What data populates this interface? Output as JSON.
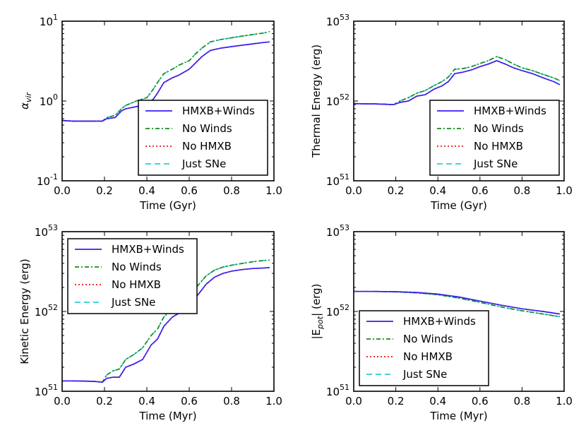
{
  "chart_data": [
    {
      "type": "line",
      "xlabel": "Time (Gyr)",
      "ylabel": "α_vir",
      "ylabel_base": "α",
      "ylabel_sub": "vir",
      "xlim": [
        0.0,
        1.0
      ],
      "ylim": [
        0.1,
        10
      ],
      "yscale": "log",
      "xticks": [
        "0.0",
        "0.2",
        "0.4",
        "0.6",
        "0.8",
        "1.0"
      ],
      "yticks": [
        {
          "base": "10",
          "exp": "-1",
          "value": 0.1
        },
        {
          "base": "10",
          "exp": "0",
          "value": 1
        },
        {
          "base": "10",
          "exp": "1",
          "value": 10
        }
      ],
      "legend_position": "lower-right",
      "series": [
        {
          "name": "HMXB+Winds",
          "color": "#3a1ff0",
          "dash": "solid",
          "x": [
            0.0,
            0.05,
            0.1,
            0.15,
            0.19,
            0.21,
            0.25,
            0.28,
            0.3,
            0.35,
            0.4,
            0.43,
            0.45,
            0.48,
            0.52,
            0.55,
            0.6,
            0.63,
            0.66,
            0.7,
            0.75,
            0.8,
            0.85,
            0.9,
            0.95,
            0.98
          ],
          "y": [
            0.57,
            0.56,
            0.56,
            0.56,
            0.56,
            0.6,
            0.62,
            0.75,
            0.8,
            0.85,
            0.92,
            1.05,
            1.25,
            1.7,
            1.95,
            2.1,
            2.5,
            3.0,
            3.6,
            4.3,
            4.6,
            4.8,
            5.0,
            5.2,
            5.4,
            5.5
          ]
        },
        {
          "name": "No Winds",
          "color": "#1a8a1a",
          "dash": "6,3,2,3",
          "x": [
            0.0,
            0.05,
            0.1,
            0.15,
            0.19,
            0.21,
            0.25,
            0.28,
            0.3,
            0.35,
            0.4,
            0.43,
            0.45,
            0.48,
            0.52,
            0.55,
            0.6,
            0.63,
            0.66,
            0.7,
            0.75,
            0.8,
            0.85,
            0.9,
            0.95,
            0.98
          ],
          "y": [
            0.57,
            0.56,
            0.56,
            0.56,
            0.56,
            0.62,
            0.66,
            0.8,
            0.88,
            1.0,
            1.1,
            1.4,
            1.7,
            2.2,
            2.5,
            2.8,
            3.2,
            3.9,
            4.6,
            5.5,
            5.9,
            6.2,
            6.5,
            6.8,
            7.1,
            7.4
          ]
        },
        {
          "name": "No HMXB",
          "color": "#e81515",
          "dash": "2,3",
          "x": [
            0.0,
            0.05,
            0.1,
            0.15,
            0.19,
            0.21,
            0.25,
            0.28,
            0.3,
            0.35,
            0.4,
            0.43,
            0.45,
            0.48,
            0.52,
            0.55,
            0.6,
            0.63,
            0.66,
            0.7,
            0.75,
            0.8,
            0.85,
            0.9,
            0.95,
            0.98
          ],
          "y": [
            0.57,
            0.56,
            0.56,
            0.56,
            0.56,
            0.6,
            0.62,
            0.75,
            0.8,
            0.85,
            0.92,
            1.05,
            1.25,
            1.7,
            1.95,
            2.1,
            2.5,
            3.0,
            3.6,
            4.3,
            4.6,
            4.8,
            5.0,
            5.2,
            5.4,
            5.5
          ]
        },
        {
          "name": "Just SNe",
          "color": "#2ad0d0",
          "dash": "8,5",
          "x": [
            0.0,
            0.05,
            0.1,
            0.15,
            0.19,
            0.21,
            0.25,
            0.28,
            0.3,
            0.35,
            0.4,
            0.43,
            0.45,
            0.48,
            0.52,
            0.55,
            0.6,
            0.63,
            0.66,
            0.7,
            0.75,
            0.8,
            0.85,
            0.9,
            0.95,
            0.98
          ],
          "y": [
            0.57,
            0.56,
            0.56,
            0.56,
            0.56,
            0.62,
            0.66,
            0.8,
            0.88,
            1.0,
            1.1,
            1.4,
            1.7,
            2.2,
            2.5,
            2.8,
            3.2,
            3.9,
            4.6,
            5.5,
            5.9,
            6.2,
            6.5,
            6.8,
            7.1,
            7.4
          ]
        }
      ]
    },
    {
      "type": "line",
      "xlabel": "Time (Gyr)",
      "ylabel": "Thermal Energy (erg)",
      "xlim": [
        0.0,
        1.0
      ],
      "ylim": [
        1e+51,
        1e+53
      ],
      "yscale": "log",
      "xticks": [
        "0.0",
        "0.2",
        "0.4",
        "0.6",
        "0.8",
        "1.0"
      ],
      "yticks": [
        {
          "base": "10",
          "exp": "51",
          "value": 1e+51
        },
        {
          "base": "10",
          "exp": "52",
          "value": 1e+52
        },
        {
          "base": "10",
          "exp": "53",
          "value": 1e+53
        }
      ],
      "legend_position": "lower-right",
      "series": [
        {
          "name": "HMXB+Winds",
          "color": "#3a1ff0",
          "dash": "solid",
          "x": [
            0.0,
            0.05,
            0.1,
            0.15,
            0.19,
            0.22,
            0.26,
            0.3,
            0.34,
            0.38,
            0.42,
            0.45,
            0.48,
            0.52,
            0.56,
            0.6,
            0.64,
            0.68,
            0.72,
            0.76,
            0.8,
            0.85,
            0.9,
            0.95,
            0.98
          ],
          "y": [
            9.3e+51,
            9.2e+51,
            9.2e+51,
            9.1e+51,
            9e+51,
            9.6e+51,
            1e+52,
            1.15e+52,
            1.2e+52,
            1.4e+52,
            1.55e+52,
            1.75e+52,
            2.2e+52,
            2.3e+52,
            2.45e+52,
            2.7e+52,
            2.9e+52,
            3.2e+52,
            2.9e+52,
            2.6e+52,
            2.4e+52,
            2.2e+52,
            1.95e+52,
            1.75e+52,
            1.6e+52
          ]
        },
        {
          "name": "No Winds",
          "color": "#1a8a1a",
          "dash": "6,3,2,3",
          "x": [
            0.0,
            0.05,
            0.1,
            0.15,
            0.19,
            0.22,
            0.26,
            0.3,
            0.34,
            0.38,
            0.42,
            0.45,
            0.48,
            0.52,
            0.56,
            0.6,
            0.64,
            0.68,
            0.72,
            0.76,
            0.8,
            0.85,
            0.9,
            0.95,
            0.98
          ],
          "y": [
            9.3e+51,
            9.2e+51,
            9.2e+51,
            9.1e+51,
            9e+51,
            1e+52,
            1.1e+52,
            1.25e+52,
            1.35e+52,
            1.55e+52,
            1.75e+52,
            2e+52,
            2.5e+52,
            2.55e+52,
            2.7e+52,
            2.95e+52,
            3.2e+52,
            3.6e+52,
            3.3e+52,
            2.9e+52,
            2.6e+52,
            2.4e+52,
            2.15e+52,
            1.95e+52,
            1.8e+52
          ]
        },
        {
          "name": "No HMXB",
          "color": "#e81515",
          "dash": "2,3",
          "x": [
            0.0,
            0.05,
            0.1,
            0.15,
            0.19,
            0.22,
            0.26,
            0.3,
            0.34,
            0.38,
            0.42,
            0.45,
            0.48,
            0.52,
            0.56,
            0.6,
            0.64,
            0.68,
            0.72,
            0.76,
            0.8,
            0.85,
            0.9,
            0.95,
            0.98
          ],
          "y": [
            9.3e+51,
            9.2e+51,
            9.2e+51,
            9.1e+51,
            9e+51,
            9.6e+51,
            1e+52,
            1.15e+52,
            1.2e+52,
            1.4e+52,
            1.55e+52,
            1.75e+52,
            2.2e+52,
            2.3e+52,
            2.45e+52,
            2.7e+52,
            2.9e+52,
            3.2e+52,
            2.9e+52,
            2.6e+52,
            2.4e+52,
            2.2e+52,
            1.95e+52,
            1.75e+52,
            1.6e+52
          ]
        },
        {
          "name": "Just SNe",
          "color": "#2ad0d0",
          "dash": "8,5",
          "x": [
            0.0,
            0.05,
            0.1,
            0.15,
            0.19,
            0.22,
            0.26,
            0.3,
            0.34,
            0.38,
            0.42,
            0.45,
            0.48,
            0.52,
            0.56,
            0.6,
            0.64,
            0.68,
            0.72,
            0.76,
            0.8,
            0.85,
            0.9,
            0.95,
            0.98
          ],
          "y": [
            9.3e+51,
            9.2e+51,
            9.2e+51,
            9.1e+51,
            9e+51,
            1e+52,
            1.1e+52,
            1.25e+52,
            1.35e+52,
            1.55e+52,
            1.75e+52,
            2e+52,
            2.5e+52,
            2.55e+52,
            2.7e+52,
            2.95e+52,
            3.2e+52,
            3.6e+52,
            3.3e+52,
            2.9e+52,
            2.6e+52,
            2.4e+52,
            2.15e+52,
            1.95e+52,
            1.8e+52
          ]
        }
      ]
    },
    {
      "type": "line",
      "xlabel": "Time (Myr)",
      "ylabel": "Kinetic Energy (erg)",
      "xlim": [
        0.0,
        1.0
      ],
      "ylim": [
        1e+51,
        1e+53
      ],
      "yscale": "log",
      "xticks": [
        "0.0",
        "0.2",
        "0.4",
        "0.6",
        "0.8",
        "1.0"
      ],
      "yticks": [
        {
          "base": "10",
          "exp": "51",
          "value": 1e+51
        },
        {
          "base": "10",
          "exp": "52",
          "value": 1e+52
        },
        {
          "base": "10",
          "exp": "53",
          "value": 1e+53
        }
      ],
      "legend_position": "upper-left",
      "series": [
        {
          "name": "HMXB+Winds",
          "color": "#3a1ff0",
          "dash": "solid",
          "x": [
            0.0,
            0.05,
            0.1,
            0.15,
            0.19,
            0.21,
            0.24,
            0.27,
            0.3,
            0.34,
            0.38,
            0.42,
            0.45,
            0.48,
            0.52,
            0.56,
            0.6,
            0.64,
            0.68,
            0.72,
            0.76,
            0.8,
            0.85,
            0.9,
            0.95,
            0.98
          ],
          "y": [
            1.35e+51,
            1.35e+51,
            1.34e+51,
            1.33e+51,
            1.3e+51,
            1.45e+51,
            1.5e+51,
            1.5e+51,
            2e+51,
            2.2e+51,
            2.5e+51,
            3.8e+51,
            4.5e+51,
            6.5e+51,
            8.5e+51,
            9.8e+51,
            1.2e+52,
            1.6e+52,
            2.2e+52,
            2.7e+52,
            3e+52,
            3.2e+52,
            3.35e+52,
            3.45e+52,
            3.5e+52,
            3.55e+52
          ]
        },
        {
          "name": "No Winds",
          "color": "#1a8a1a",
          "dash": "6,3,2,3",
          "x": [
            0.0,
            0.05,
            0.1,
            0.15,
            0.19,
            0.21,
            0.24,
            0.27,
            0.3,
            0.34,
            0.38,
            0.42,
            0.45,
            0.48,
            0.52,
            0.56,
            0.6,
            0.64,
            0.68,
            0.72,
            0.76,
            0.8,
            0.85,
            0.9,
            0.95,
            0.98
          ],
          "y": [
            1.35e+51,
            1.35e+51,
            1.34e+51,
            1.33e+51,
            1.3e+51,
            1.6e+51,
            1.8e+51,
            1.9e+51,
            2.5e+51,
            2.9e+51,
            3.5e+51,
            5e+51,
            6e+51,
            8.5e+51,
            1.1e+52,
            1.3e+52,
            1.6e+52,
            2.1e+52,
            2.8e+52,
            3.3e+52,
            3.6e+52,
            3.8e+52,
            4e+52,
            4.2e+52,
            4.35e+52,
            4.4e+52
          ]
        },
        {
          "name": "No HMXB",
          "color": "#e81515",
          "dash": "2,3",
          "x": [
            0.0,
            0.05,
            0.1,
            0.15,
            0.19,
            0.21,
            0.24,
            0.27,
            0.3,
            0.34,
            0.38,
            0.42,
            0.45,
            0.48,
            0.52,
            0.56,
            0.6,
            0.64,
            0.68,
            0.72,
            0.76,
            0.8,
            0.85,
            0.9,
            0.95,
            0.98
          ],
          "y": [
            1.35e+51,
            1.35e+51,
            1.34e+51,
            1.33e+51,
            1.3e+51,
            1.45e+51,
            1.5e+51,
            1.5e+51,
            2e+51,
            2.2e+51,
            2.5e+51,
            3.8e+51,
            4.5e+51,
            6.5e+51,
            8.5e+51,
            9.8e+51,
            1.2e+52,
            1.6e+52,
            2.2e+52,
            2.7e+52,
            3e+52,
            3.2e+52,
            3.35e+52,
            3.45e+52,
            3.5e+52,
            3.55e+52
          ]
        },
        {
          "name": "Just SNe",
          "color": "#2ad0d0",
          "dash": "8,5",
          "x": [
            0.0,
            0.05,
            0.1,
            0.15,
            0.19,
            0.21,
            0.24,
            0.27,
            0.3,
            0.34,
            0.38,
            0.42,
            0.45,
            0.48,
            0.52,
            0.56,
            0.6,
            0.64,
            0.68,
            0.72,
            0.76,
            0.8,
            0.85,
            0.9,
            0.95,
            0.98
          ],
          "y": [
            1.35e+51,
            1.35e+51,
            1.34e+51,
            1.33e+51,
            1.3e+51,
            1.6e+51,
            1.8e+51,
            1.9e+51,
            2.5e+51,
            2.9e+51,
            3.5e+51,
            5e+51,
            6e+51,
            8.5e+51,
            1.1e+52,
            1.3e+52,
            1.6e+52,
            2.1e+52,
            2.8e+52,
            3.3e+52,
            3.6e+52,
            3.8e+52,
            4e+52,
            4.2e+52,
            4.35e+52,
            4.4e+52
          ]
        }
      ]
    },
    {
      "type": "line",
      "xlabel": "Time (Myr)",
      "ylabel": "|E_pot| (erg)",
      "ylabel_pre": "|E",
      "ylabel_sub": "pot",
      "ylabel_post": "| (erg)",
      "xlim": [
        0.0,
        1.0
      ],
      "ylim": [
        1e+51,
        1e+53
      ],
      "yscale": "log",
      "xticks": [
        "0.0",
        "0.2",
        "0.4",
        "0.6",
        "0.8",
        "1.0"
      ],
      "yticks": [
        {
          "base": "10",
          "exp": "51",
          "value": 1e+51
        },
        {
          "base": "10",
          "exp": "52",
          "value": 1e+52
        },
        {
          "base": "10",
          "exp": "53",
          "value": 1e+53
        }
      ],
      "legend_position": "lower-left",
      "series": [
        {
          "name": "HMXB+Winds",
          "color": "#3a1ff0",
          "dash": "solid",
          "x": [
            0.0,
            0.1,
            0.2,
            0.3,
            0.4,
            0.5,
            0.6,
            0.7,
            0.8,
            0.9,
            0.98
          ],
          "y": [
            1.78e+52,
            1.78e+52,
            1.77e+52,
            1.73e+52,
            1.65e+52,
            1.52e+52,
            1.35e+52,
            1.2e+52,
            1.08e+52,
            1e+52,
            9.3e+51
          ]
        },
        {
          "name": "No Winds",
          "color": "#1a8a1a",
          "dash": "6,3,2,3",
          "x": [
            0.0,
            0.1,
            0.2,
            0.3,
            0.4,
            0.5,
            0.6,
            0.7,
            0.8,
            0.9,
            0.98
          ],
          "y": [
            1.78e+52,
            1.78e+52,
            1.76e+52,
            1.71e+52,
            1.62e+52,
            1.47e+52,
            1.3e+52,
            1.14e+52,
            1.02e+52,
            9.3e+51,
            8.6e+51
          ]
        },
        {
          "name": "No HMXB",
          "color": "#e81515",
          "dash": "2,3",
          "x": [
            0.0,
            0.1,
            0.2,
            0.3,
            0.4,
            0.5,
            0.6,
            0.7,
            0.8,
            0.9,
            0.98
          ],
          "y": [
            1.78e+52,
            1.78e+52,
            1.77e+52,
            1.73e+52,
            1.65e+52,
            1.52e+52,
            1.35e+52,
            1.2e+52,
            1.08e+52,
            1e+52,
            9.3e+51
          ]
        },
        {
          "name": "Just SNe",
          "color": "#2ad0d0",
          "dash": "8,5",
          "x": [
            0.0,
            0.1,
            0.2,
            0.3,
            0.4,
            0.5,
            0.6,
            0.7,
            0.8,
            0.9,
            0.98
          ],
          "y": [
            1.78e+52,
            1.78e+52,
            1.76e+52,
            1.71e+52,
            1.62e+52,
            1.47e+52,
            1.3e+52,
            1.14e+52,
            1.02e+52,
            9.3e+51,
            8.6e+51
          ]
        }
      ]
    }
  ]
}
